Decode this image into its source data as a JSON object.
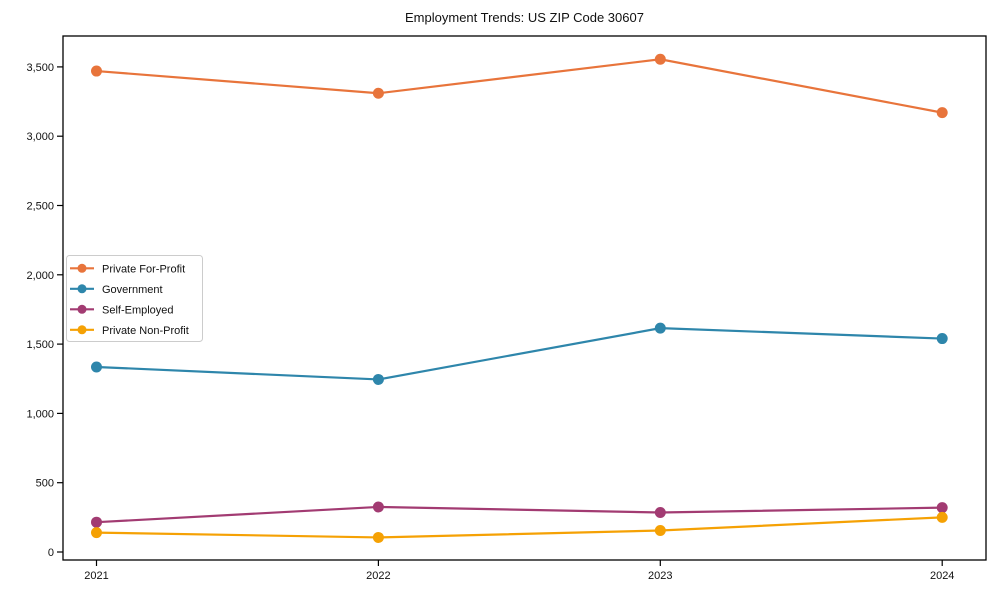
{
  "chart_data": {
    "type": "line",
    "title": "Employment Trends: US ZIP Code 30607",
    "xlabel": "",
    "ylabel": "",
    "x": [
      2021,
      2022,
      2023,
      2024
    ],
    "series": [
      {
        "name": "Private For-Profit",
        "color": "#E8743B",
        "values": [
          3470,
          3310,
          3555,
          3170
        ]
      },
      {
        "name": "Government",
        "color": "#2E86AB",
        "values": [
          1335,
          1245,
          1615,
          1540
        ]
      },
      {
        "name": "Self-Employed",
        "color": "#A23B72",
        "values": [
          215,
          325,
          285,
          320
        ]
      },
      {
        "name": "Private Non-Profit",
        "color": "#F5A104",
        "values": [
          140,
          105,
          155,
          250
        ]
      }
    ],
    "yticks": [
      0,
      500,
      1000,
      1500,
      2000,
      2500,
      3000,
      3500
    ],
    "ylim": [
      -60,
      3730
    ],
    "grid": false,
    "marker": "circle",
    "legend_position": "center-left",
    "frame_color": "#000000",
    "tick_label_color": "#111111",
    "legend_border_color": "#cccccc",
    "background": "#ffffff"
  }
}
